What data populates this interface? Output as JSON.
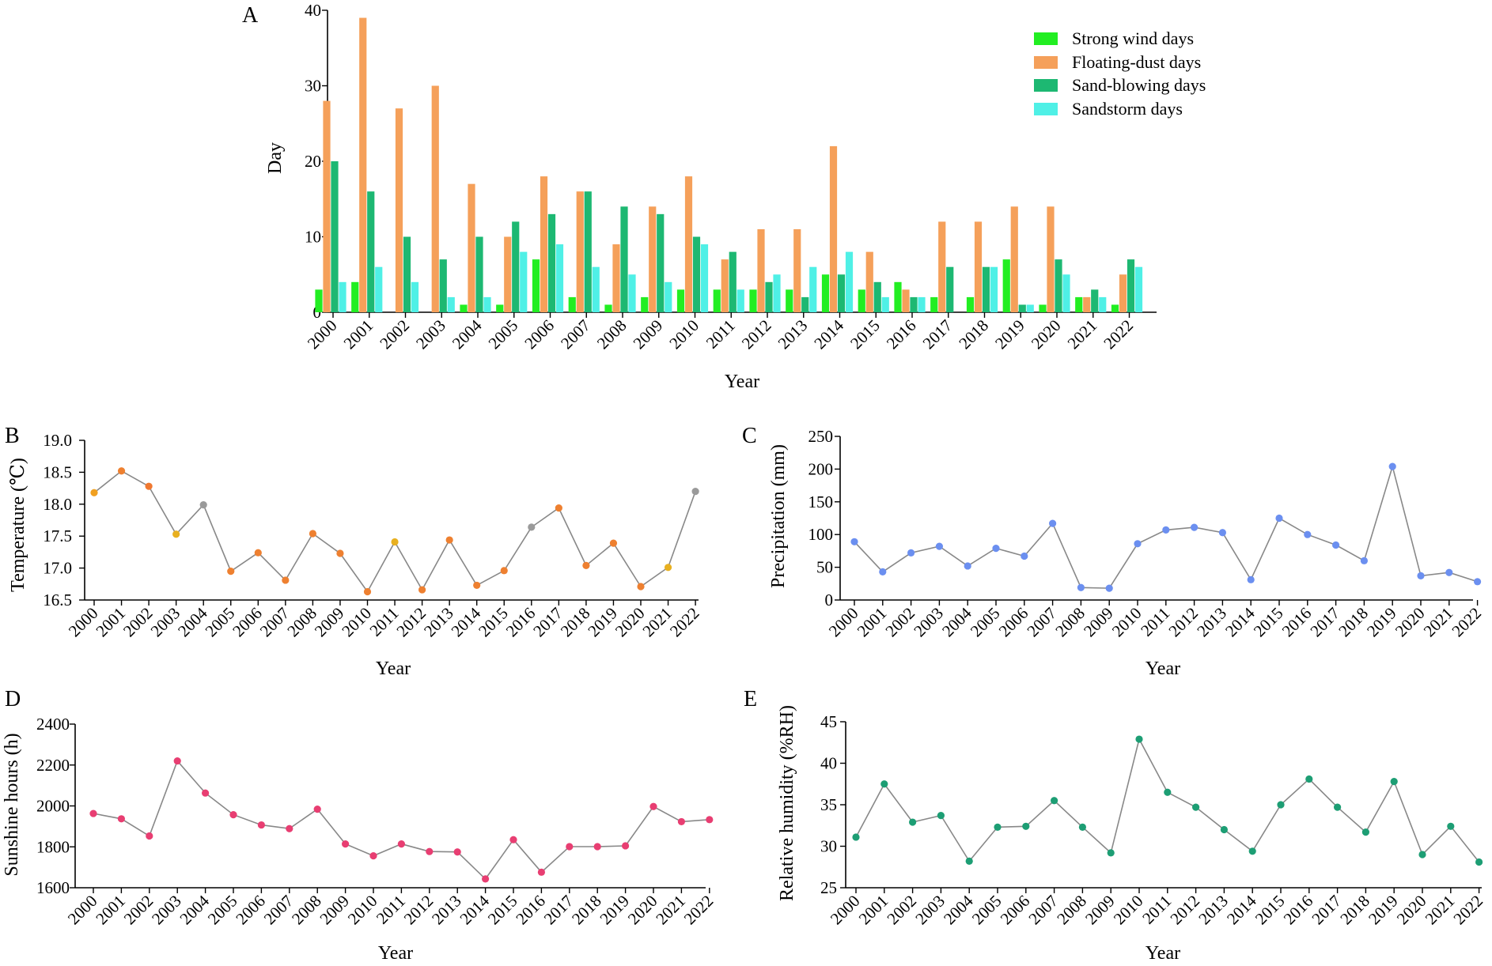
{
  "figure": {
    "panels": [
      "A",
      "B",
      "C",
      "D",
      "E"
    ]
  },
  "chart_data": [
    {
      "id": "A",
      "type": "bar",
      "panel_label": "A",
      "xlabel": "Year",
      "ylabel": "Day",
      "ylim": [
        0,
        40
      ],
      "yticks": [
        "0",
        "10",
        "20",
        "30",
        "40"
      ],
      "categories": [
        "2000",
        "2001",
        "2002",
        "2003",
        "2004",
        "2005",
        "2006",
        "2007",
        "2008",
        "2009",
        "2010",
        "2011",
        "2012",
        "2013",
        "2014",
        "2015",
        "2016",
        "2017",
        "2018",
        "2019",
        "2020",
        "2021",
        "2022"
      ],
      "legend_position": "top-right",
      "series": [
        {
          "name": "Strong wind days",
          "color": "#22ee22",
          "values": [
            3,
            4,
            0,
            0,
            1,
            1,
            7,
            2,
            1,
            2,
            3,
            3,
            3,
            3,
            5,
            3,
            4,
            2,
            2,
            7,
            1,
            2,
            1
          ]
        },
        {
          "name": "Floating-dust days",
          "color": "#f5a05a",
          "values": [
            28,
            39,
            27,
            30,
            17,
            10,
            18,
            16,
            9,
            14,
            18,
            7,
            11,
            11,
            22,
            8,
            3,
            12,
            12,
            14,
            14,
            2,
            5
          ]
        },
        {
          "name": "Sand-blowing days",
          "color": "#1db872",
          "values": [
            20,
            16,
            10,
            7,
            10,
            12,
            13,
            16,
            14,
            13,
            10,
            8,
            4,
            2,
            5,
            4,
            2,
            6,
            6,
            1,
            7,
            3,
            7
          ]
        },
        {
          "name": "Sandstorm days",
          "color": "#4ff0e6",
          "values": [
            4,
            6,
            4,
            2,
            2,
            8,
            9,
            6,
            5,
            4,
            9,
            3,
            5,
            6,
            8,
            2,
            2,
            0,
            6,
            1,
            5,
            2,
            6
          ]
        }
      ]
    },
    {
      "id": "B",
      "type": "line",
      "panel_label": "B",
      "xlabel": "Year",
      "ylabel": "Temperature (℃)",
      "ylim": [
        16.5,
        19.0
      ],
      "yticks": [
        "16.5",
        "17.0",
        "17.5",
        "18.0",
        "18.5",
        "19.0"
      ],
      "x": [
        "2000",
        "2001",
        "2002",
        "2003",
        "2004",
        "2005",
        "2006",
        "2007",
        "2008",
        "2009",
        "2010",
        "2011",
        "2012",
        "2013",
        "2014",
        "2015",
        "2016",
        "2017",
        "2018",
        "2019",
        "2020",
        "2021",
        "2022"
      ],
      "values": [
        18.18,
        18.52,
        18.28,
        17.53,
        17.99,
        16.95,
        17.24,
        16.81,
        17.54,
        17.23,
        16.63,
        17.41,
        16.66,
        17.44,
        16.73,
        16.96,
        17.64,
        17.94,
        17.04,
        17.39,
        16.71,
        17.01,
        18.2
      ],
      "colors": [
        "#f0a020",
        "#ee8030",
        "#f07830",
        "#e8b020",
        "#9a9a9a",
        "#ee8030",
        "#ee8030",
        "#ee8030",
        "#ee8030",
        "#ee8030",
        "#ee8030",
        "#e8b020",
        "#ee8030",
        "#ee8030",
        "#ee8030",
        "#ee8030",
        "#9a9a9a",
        "#ee8030",
        "#ee8030",
        "#ee8030",
        "#ee8030",
        "#e8b020",
        "#9a9a9a"
      ]
    },
    {
      "id": "C",
      "type": "line",
      "panel_label": "C",
      "xlabel": "Year",
      "ylabel": "Precipitation (mm)",
      "ylim": [
        0,
        250
      ],
      "yticks": [
        "0",
        "50",
        "100",
        "150",
        "200",
        "250"
      ],
      "x": [
        "2000",
        "2001",
        "2002",
        "2003",
        "2004",
        "2005",
        "2006",
        "2007",
        "2008",
        "2009",
        "2010",
        "2011",
        "2012",
        "2013",
        "2014",
        "2015",
        "2016",
        "2017",
        "2018",
        "2019",
        "2020",
        "2021",
        "2022"
      ],
      "values": [
        89,
        43,
        72,
        82,
        52,
        79,
        67,
        117,
        19,
        18,
        86,
        107,
        111,
        103,
        31,
        125,
        100,
        84,
        60,
        204,
        37,
        42,
        28
      ],
      "color": "#6b8ff0"
    },
    {
      "id": "D",
      "type": "line",
      "panel_label": "D",
      "xlabel": "Year",
      "ylabel": "Sunshine hours (h)",
      "ylim": [
        1600,
        2400
      ],
      "yticks": [
        "1600",
        "1800",
        "2000",
        "2200",
        "2400"
      ],
      "x": [
        "2000",
        "2001",
        "2002",
        "2003",
        "2004",
        "2005",
        "2006",
        "2007",
        "2008",
        "2009",
        "2010",
        "2011",
        "2012",
        "2013",
        "2014",
        "2015",
        "2016",
        "2017",
        "2018",
        "2019",
        "2020",
        "2021",
        "2022"
      ],
      "values": [
        1963,
        1937,
        1853,
        2220,
        2063,
        1957,
        1907,
        1889,
        1984,
        1814,
        1756,
        1814,
        1777,
        1775,
        1643,
        1835,
        1676,
        1801,
        1801,
        1805,
        1997,
        1923,
        1933
      ],
      "color": "#e83e72"
    },
    {
      "id": "E",
      "type": "line",
      "panel_label": "E",
      "xlabel": "Year",
      "ylabel": "Relative humidity (%RH)",
      "ylim": [
        25,
        45
      ],
      "yticks": [
        "25",
        "30",
        "35",
        "40",
        "45"
      ],
      "x": [
        "2000",
        "2001",
        "2002",
        "2003",
        "2004",
        "2005",
        "2006",
        "2007",
        "2008",
        "2009",
        "2010",
        "2011",
        "2012",
        "2013",
        "2014",
        "2015",
        "2016",
        "2017",
        "2018",
        "2019",
        "2020",
        "2021",
        "2022"
      ],
      "values": [
        31.1,
        37.5,
        32.9,
        33.7,
        28.2,
        32.3,
        32.4,
        35.5,
        32.3,
        29.2,
        42.9,
        36.5,
        34.7,
        32.0,
        29.4,
        35.0,
        38.1,
        34.7,
        31.7,
        37.8,
        29.0,
        32.4,
        28.1
      ],
      "color": "#1d9e74"
    }
  ]
}
